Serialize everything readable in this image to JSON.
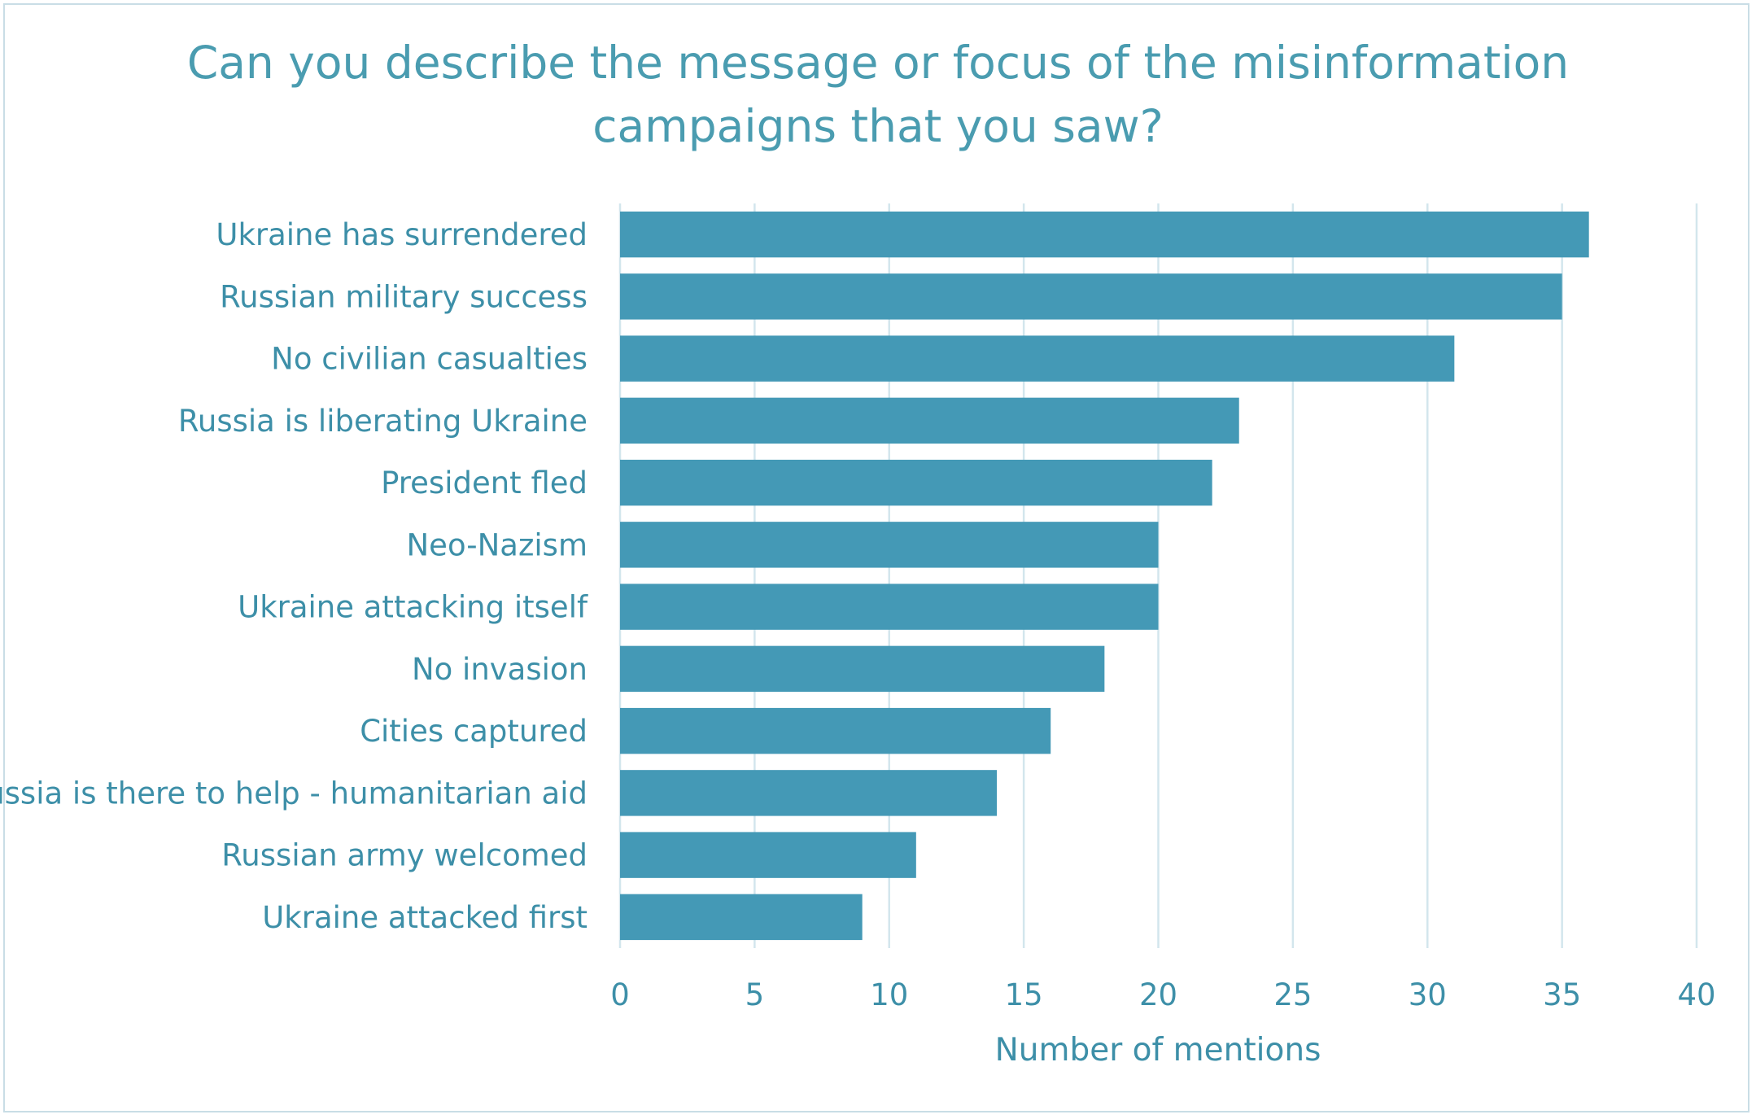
{
  "chart_data": {
    "type": "bar",
    "orientation": "horizontal",
    "title": "Can you describe the message or focus of the misinformation campaigns that you saw?",
    "title_lines": [
      "Can you describe the message or focus of the misinformation",
      "campaigns that you saw?"
    ],
    "xlabel": "Number of mentions",
    "ylabel": "",
    "categories": [
      "Ukraine has surrendered",
      "Russian military success",
      "No civilian casualties",
      "Russia is liberating Ukraine",
      "President fled",
      "Neo-Nazism",
      "Ukraine attacking itself",
      "No invasion",
      "Cities captured",
      "Russia is there to help - humanitarian aid",
      "Russian army welcomed",
      "Ukraine attacked first"
    ],
    "values": [
      36,
      35,
      31,
      23,
      22,
      20,
      20,
      18,
      16,
      14,
      11,
      9
    ],
    "xlim": [
      0,
      40
    ],
    "xticks": [
      0,
      5,
      10,
      15,
      20,
      25,
      30,
      35,
      40
    ],
    "grid": "vertical",
    "legend": "none",
    "colors": {
      "bar": "#4499b6",
      "text": "#3d8fa8",
      "title": "#4a9cb0",
      "grid": "#d3e6ed"
    }
  }
}
